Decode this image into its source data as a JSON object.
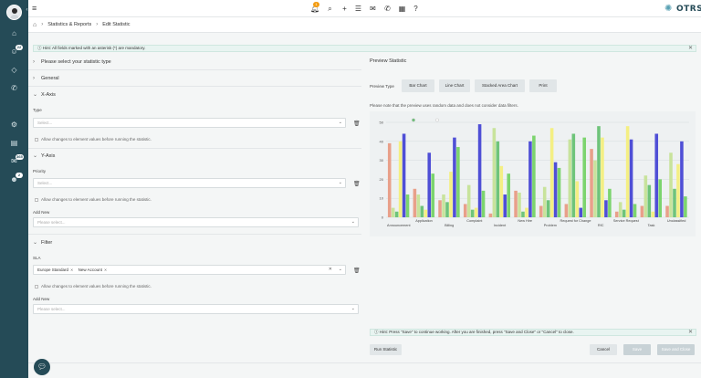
{
  "sidebar": {
    "badges": [
      "22",
      "365",
      "2"
    ]
  },
  "topbar": {
    "notification_count": "1",
    "logo_text": "OTRS"
  },
  "breadcrumb": {
    "items": [
      "Statistics & Reports",
      "Edit Statistic"
    ]
  },
  "hints": {
    "mandatory": "Hint: All fields marked with an asterisk (*) are mandatory.",
    "save": "Hint: Press \"Save\" to continue working. After you are finished, press \"Save and Close\" or \"Cancel\" to close."
  },
  "form": {
    "select_type_title": "Please select your statistic type",
    "general_title": "General",
    "xaxis": {
      "title": "X-Axis",
      "field_label": "Type",
      "placeholder": "Select...",
      "allow_changes": "Allow changes to element values before running the statistic."
    },
    "yaxis": {
      "title": "Y-Axis",
      "field_label": "Priority",
      "placeholder": "Select...",
      "allow_changes": "Allow changes to element values before running the statistic.",
      "add_new_label": "Add New",
      "add_new_placeholder": "Please select..."
    },
    "filter": {
      "title": "Filter",
      "field_label": "SLA",
      "tags": [
        "Europe Standard",
        "New Account"
      ],
      "allow_changes": "Allow changes to element values before running the statistic.",
      "add_new_label": "Add New",
      "add_new_placeholder": "Please select..."
    }
  },
  "preview": {
    "title": "Preview Statistic",
    "type_label": "Preview Type",
    "type_buttons": [
      "Bar Chart",
      "Line Chart",
      "Stacked Area Chart",
      "Print"
    ],
    "note": "Please note that the preview uses random data and does not consider data filters."
  },
  "buttons": {
    "run": "Run Statistic",
    "cancel": "Cancel",
    "save": "Save",
    "save_close": "Save and Close"
  },
  "chart_data": {
    "type": "bar",
    "ylim": [
      0,
      50
    ],
    "yticks": [
      0,
      10,
      20,
      30,
      40,
      50
    ],
    "grid": true,
    "legend": "top-center",
    "categories": [
      "Announcement",
      "Application",
      "Billing",
      "Complaint",
      "Incident",
      "New Hire",
      "Problem",
      "Request for Change",
      "RfC",
      "Service Request",
      "Task",
      "Unclassified"
    ],
    "series": [
      {
        "color": "#e8a08a",
        "values": [
          39,
          15,
          9,
          7,
          2,
          14,
          6,
          7,
          36,
          3,
          6,
          6
        ]
      },
      {
        "color": "#c8e39c",
        "values": [
          5,
          12,
          12,
          17,
          47,
          13,
          16,
          41,
          30,
          8,
          22,
          34
        ]
      },
      {
        "color": "#6ec47a",
        "values": [
          3,
          6,
          8,
          4,
          40,
          3,
          9,
          44,
          48,
          4,
          17,
          15
        ]
      },
      {
        "color": "#f4ef83",
        "values": [
          40,
          4,
          24,
          5,
          27,
          5,
          47,
          19,
          42,
          48,
          3,
          28
        ]
      },
      {
        "color": "#4f4fd6",
        "values": [
          44,
          34,
          42,
          49,
          12,
          40,
          29,
          5,
          9,
          41,
          44,
          40
        ]
      },
      {
        "color": "#7cd46e",
        "values": [
          12,
          23,
          37,
          14,
          23,
          43,
          26,
          42,
          15,
          7,
          20,
          11
        ]
      }
    ]
  }
}
